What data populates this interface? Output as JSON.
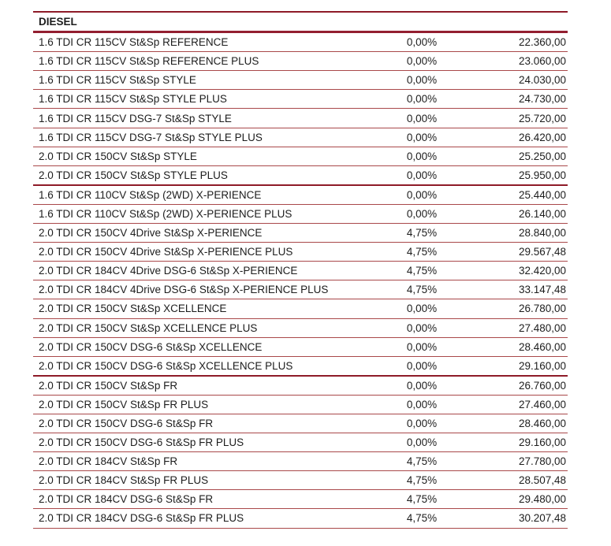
{
  "page": {
    "background": "#ffffff",
    "colors": {
      "text": "#1d1d1d",
      "row_line": "#a9484a",
      "section_line": "#8e1b28",
      "header_line": "#931e30"
    }
  },
  "table": {
    "section_title": "DIESEL",
    "columns": [
      "model",
      "discount_pct",
      "price"
    ],
    "rows": [
      {
        "model": "1.6 TDI CR 115CV St&Sp REFERENCE",
        "pct": "0,00%",
        "price": "22.360,00",
        "thick_sep_after": false
      },
      {
        "model": "1.6 TDI CR 115CV St&Sp REFERENCE PLUS",
        "pct": "0,00%",
        "price": "23.060,00",
        "thick_sep_after": false
      },
      {
        "model": "1.6 TDI CR 115CV St&Sp STYLE",
        "pct": "0,00%",
        "price": "24.030,00",
        "thick_sep_after": false
      },
      {
        "model": "1.6 TDI CR 115CV St&Sp STYLE PLUS",
        "pct": "0,00%",
        "price": "24.730,00",
        "thick_sep_after": false
      },
      {
        "model": "1.6 TDI CR 115CV DSG-7 St&Sp STYLE",
        "pct": "0,00%",
        "price": "25.720,00",
        "thick_sep_after": false
      },
      {
        "model": "1.6 TDI CR 115CV DSG-7 St&Sp STYLE PLUS",
        "pct": "0,00%",
        "price": "26.420,00",
        "thick_sep_after": false
      },
      {
        "model": "2.0 TDI CR 150CV St&Sp STYLE",
        "pct": "0,00%",
        "price": "25.250,00",
        "thick_sep_after": false
      },
      {
        "model": "2.0 TDI CR 150CV St&Sp STYLE PLUS",
        "pct": "0,00%",
        "price": "25.950,00",
        "thick_sep_after": true
      },
      {
        "model": "1.6 TDI CR 110CV St&Sp (2WD) X-PERIENCE",
        "pct": "0,00%",
        "price": "25.440,00",
        "thick_sep_after": false
      },
      {
        "model": "1.6 TDI CR 110CV St&Sp (2WD) X-PERIENCE PLUS",
        "pct": "0,00%",
        "price": "26.140,00",
        "thick_sep_after": false
      },
      {
        "model": "2.0 TDI CR 150CV 4Drive St&Sp X-PERIENCE",
        "pct": "4,75%",
        "price": "28.840,00",
        "thick_sep_after": false
      },
      {
        "model": "2.0 TDI CR 150CV 4Drive St&Sp X-PERIENCE PLUS",
        "pct": "4,75%",
        "price": "29.567,48",
        "thick_sep_after": false
      },
      {
        "model": "2.0 TDI CR 184CV 4Drive DSG-6 St&Sp X-PERIENCE",
        "pct": "4,75%",
        "price": "32.420,00",
        "thick_sep_after": false
      },
      {
        "model": "2.0 TDI CR 184CV 4Drive DSG-6 St&Sp X-PERIENCE PLUS",
        "pct": "4,75%",
        "price": "33.147,48",
        "thick_sep_after": false
      },
      {
        "model": "2.0 TDI CR 150CV St&Sp XCELLENCE",
        "pct": "0,00%",
        "price": "26.780,00",
        "thick_sep_after": false
      },
      {
        "model": "2.0 TDI CR 150CV St&Sp XCELLENCE PLUS",
        "pct": "0,00%",
        "price": "27.480,00",
        "thick_sep_after": false
      },
      {
        "model": "2.0 TDI CR 150CV DSG-6 St&Sp XCELLENCE",
        "pct": "0,00%",
        "price": "28.460,00",
        "thick_sep_after": false
      },
      {
        "model": "2.0 TDI CR 150CV DSG-6 St&Sp XCELLENCE PLUS",
        "pct": "0,00%",
        "price": "29.160,00",
        "thick_sep_after": true
      },
      {
        "model": "2.0 TDI CR 150CV St&Sp FR",
        "pct": "0,00%",
        "price": "26.760,00",
        "thick_sep_after": false
      },
      {
        "model": "2.0 TDI CR 150CV St&Sp FR PLUS",
        "pct": "0,00%",
        "price": "27.460,00",
        "thick_sep_after": false
      },
      {
        "model": "2.0 TDI CR 150CV DSG-6 St&Sp FR",
        "pct": "0,00%",
        "price": "28.460,00",
        "thick_sep_after": false
      },
      {
        "model": "2.0 TDI CR 150CV DSG-6 St&Sp FR PLUS",
        "pct": "0,00%",
        "price": "29.160,00",
        "thick_sep_after": false
      },
      {
        "model": "2.0 TDI CR 184CV St&Sp FR",
        "pct": "4,75%",
        "price": "27.780,00",
        "thick_sep_after": false
      },
      {
        "model": "2.0 TDI CR 184CV St&Sp FR PLUS",
        "pct": "4,75%",
        "price": "28.507,48",
        "thick_sep_after": false
      },
      {
        "model": "2.0 TDI CR 184CV DSG-6 St&Sp FR",
        "pct": "4,75%",
        "price": "29.480,00",
        "thick_sep_after": false
      },
      {
        "model": "2.0 TDI CR 184CV DSG-6 St&Sp FR PLUS",
        "pct": "4,75%",
        "price": "30.207,48",
        "thick_sep_after": false
      }
    ]
  }
}
